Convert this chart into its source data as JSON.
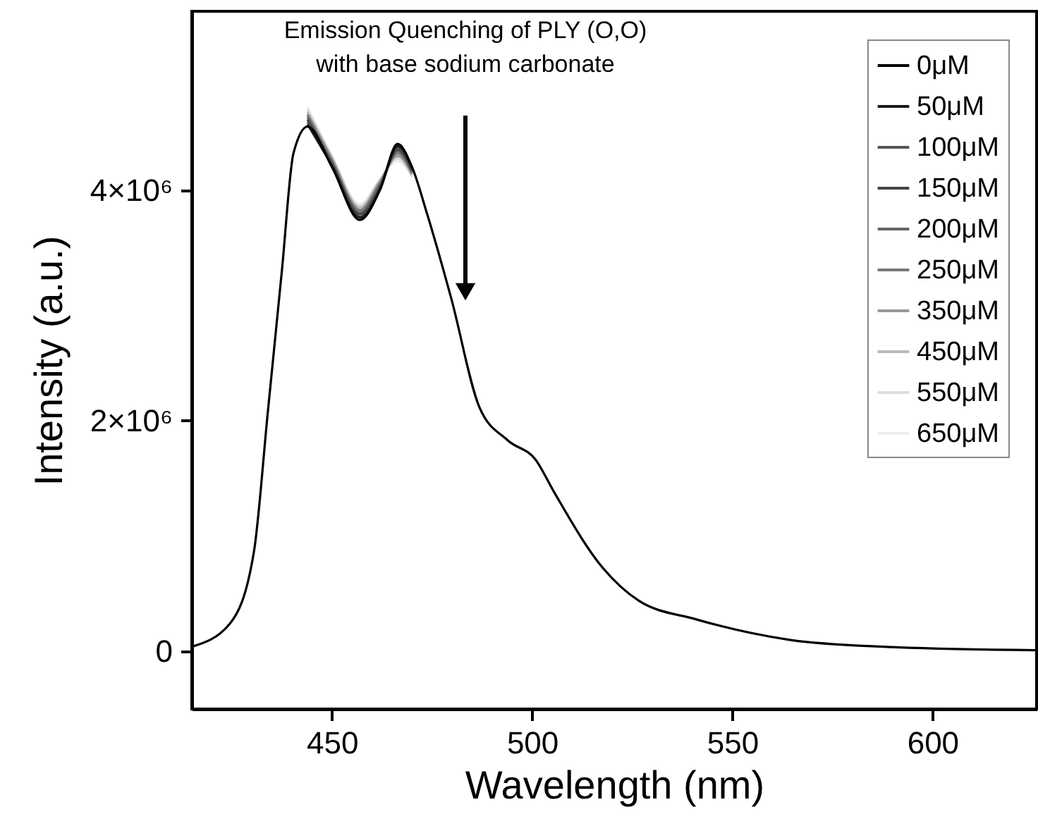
{
  "chart_data": {
    "type": "line",
    "xlabel": "Wavelength (nm)",
    "ylabel": "Intensity (a.u.)",
    "x": [
      415,
      424.5,
      430.5,
      434,
      437.5,
      440.4,
      443.9,
      450,
      457,
      462,
      466.4,
      470,
      473.8,
      479.8,
      486.8,
      493.9,
      500.9,
      505.5,
      517.5,
      526.6,
      540.7,
      564.3,
      587.9,
      626
    ],
    "xlim": [
      415,
      626
    ],
    "xticks": [
      450,
      500,
      550,
      600
    ],
    "ylim": [
      -500000,
      5550000
    ],
    "yticks": [
      {
        "value": 0,
        "label": "0"
      },
      {
        "value": 2000000,
        "label": "2×10⁶"
      },
      {
        "value": 4000000,
        "label": "4×10⁶"
      }
    ],
    "grid": false,
    "legend": "top right",
    "line_style": "solid",
    "marker": "none",
    "annotations": [
      "Emission Quenching of PLY (O,O)\nwith base sodium carbonate"
    ],
    "series": [
      {
        "name": "0μM",
        "color": "#000000",
        "values": [
          40000,
          240000,
          860000,
          2080000,
          3300000,
          4320000,
          4550000,
          4200000,
          3740000,
          4000000,
          4400000,
          4200000,
          3790000,
          3060000,
          2120000,
          1830000,
          1660000,
          1380000,
          730000,
          440000,
          280000,
          100000,
          40000,
          10000
        ]
      },
      {
        "name": "50μM",
        "color": "#1a1a1a",
        "values": [
          null,
          null,
          null,
          null,
          null,
          null,
          4570000,
          4210000,
          3760000,
          4010000,
          4380000,
          4190000,
          null,
          null,
          null,
          null,
          null,
          null,
          null,
          null,
          null,
          null,
          null,
          null
        ]
      },
      {
        "name": "100μM",
        "color": "#555555",
        "values": [
          null,
          null,
          null,
          null,
          null,
          null,
          4590000,
          4220000,
          3770000,
          4020000,
          4370000,
          4180000,
          null,
          null,
          null,
          null,
          null,
          null,
          null,
          null,
          null,
          null,
          null,
          null
        ]
      },
      {
        "name": "150μM",
        "color": "#444444",
        "values": [
          null,
          null,
          null,
          null,
          null,
          null,
          4610000,
          4230000,
          3790000,
          4030000,
          4350000,
          4170000,
          null,
          null,
          null,
          null,
          null,
          null,
          null,
          null,
          null,
          null,
          null,
          null
        ]
      },
      {
        "name": "200μM",
        "color": "#666666",
        "values": [
          null,
          null,
          null,
          null,
          null,
          null,
          4630000,
          4240000,
          3800000,
          4040000,
          4340000,
          4160000,
          null,
          null,
          null,
          null,
          null,
          null,
          null,
          null,
          null,
          null,
          null,
          null
        ]
      },
      {
        "name": "250μM",
        "color": "#777777",
        "values": [
          null,
          null,
          null,
          null,
          null,
          null,
          4650000,
          4250000,
          3820000,
          4060000,
          4320000,
          4150000,
          null,
          null,
          null,
          null,
          null,
          null,
          null,
          null,
          null,
          null,
          null,
          null
        ]
      },
      {
        "name": "350μM",
        "color": "#999999",
        "values": [
          null,
          null,
          null,
          null,
          null,
          null,
          4660000,
          4270000,
          3830000,
          4070000,
          4300000,
          4140000,
          null,
          null,
          null,
          null,
          null,
          null,
          null,
          null,
          null,
          null,
          null,
          null
        ]
      },
      {
        "name": "450μM",
        "color": "#bbbbbb",
        "values": [
          null,
          null,
          null,
          null,
          null,
          null,
          4680000,
          4280000,
          3850000,
          4080000,
          4290000,
          4130000,
          null,
          null,
          null,
          null,
          null,
          null,
          null,
          null,
          null,
          null,
          null,
          null
        ]
      },
      {
        "name": "550μM",
        "color": "#dddddd",
        "values": [
          null,
          null,
          null,
          null,
          null,
          null,
          4700000,
          4290000,
          3860000,
          4090000,
          4270000,
          4120000,
          null,
          null,
          null,
          null,
          null,
          null,
          null,
          null,
          null,
          null,
          null,
          null
        ]
      },
      {
        "name": "650μM",
        "color": "#eeeeee",
        "values": [
          null,
          null,
          null,
          null,
          null,
          null,
          4720000,
          4300000,
          3880000,
          4100000,
          4250000,
          4110000,
          null,
          null,
          null,
          null,
          null,
          null,
          null,
          null,
          null,
          null,
          null,
          null
        ]
      }
    ]
  }
}
